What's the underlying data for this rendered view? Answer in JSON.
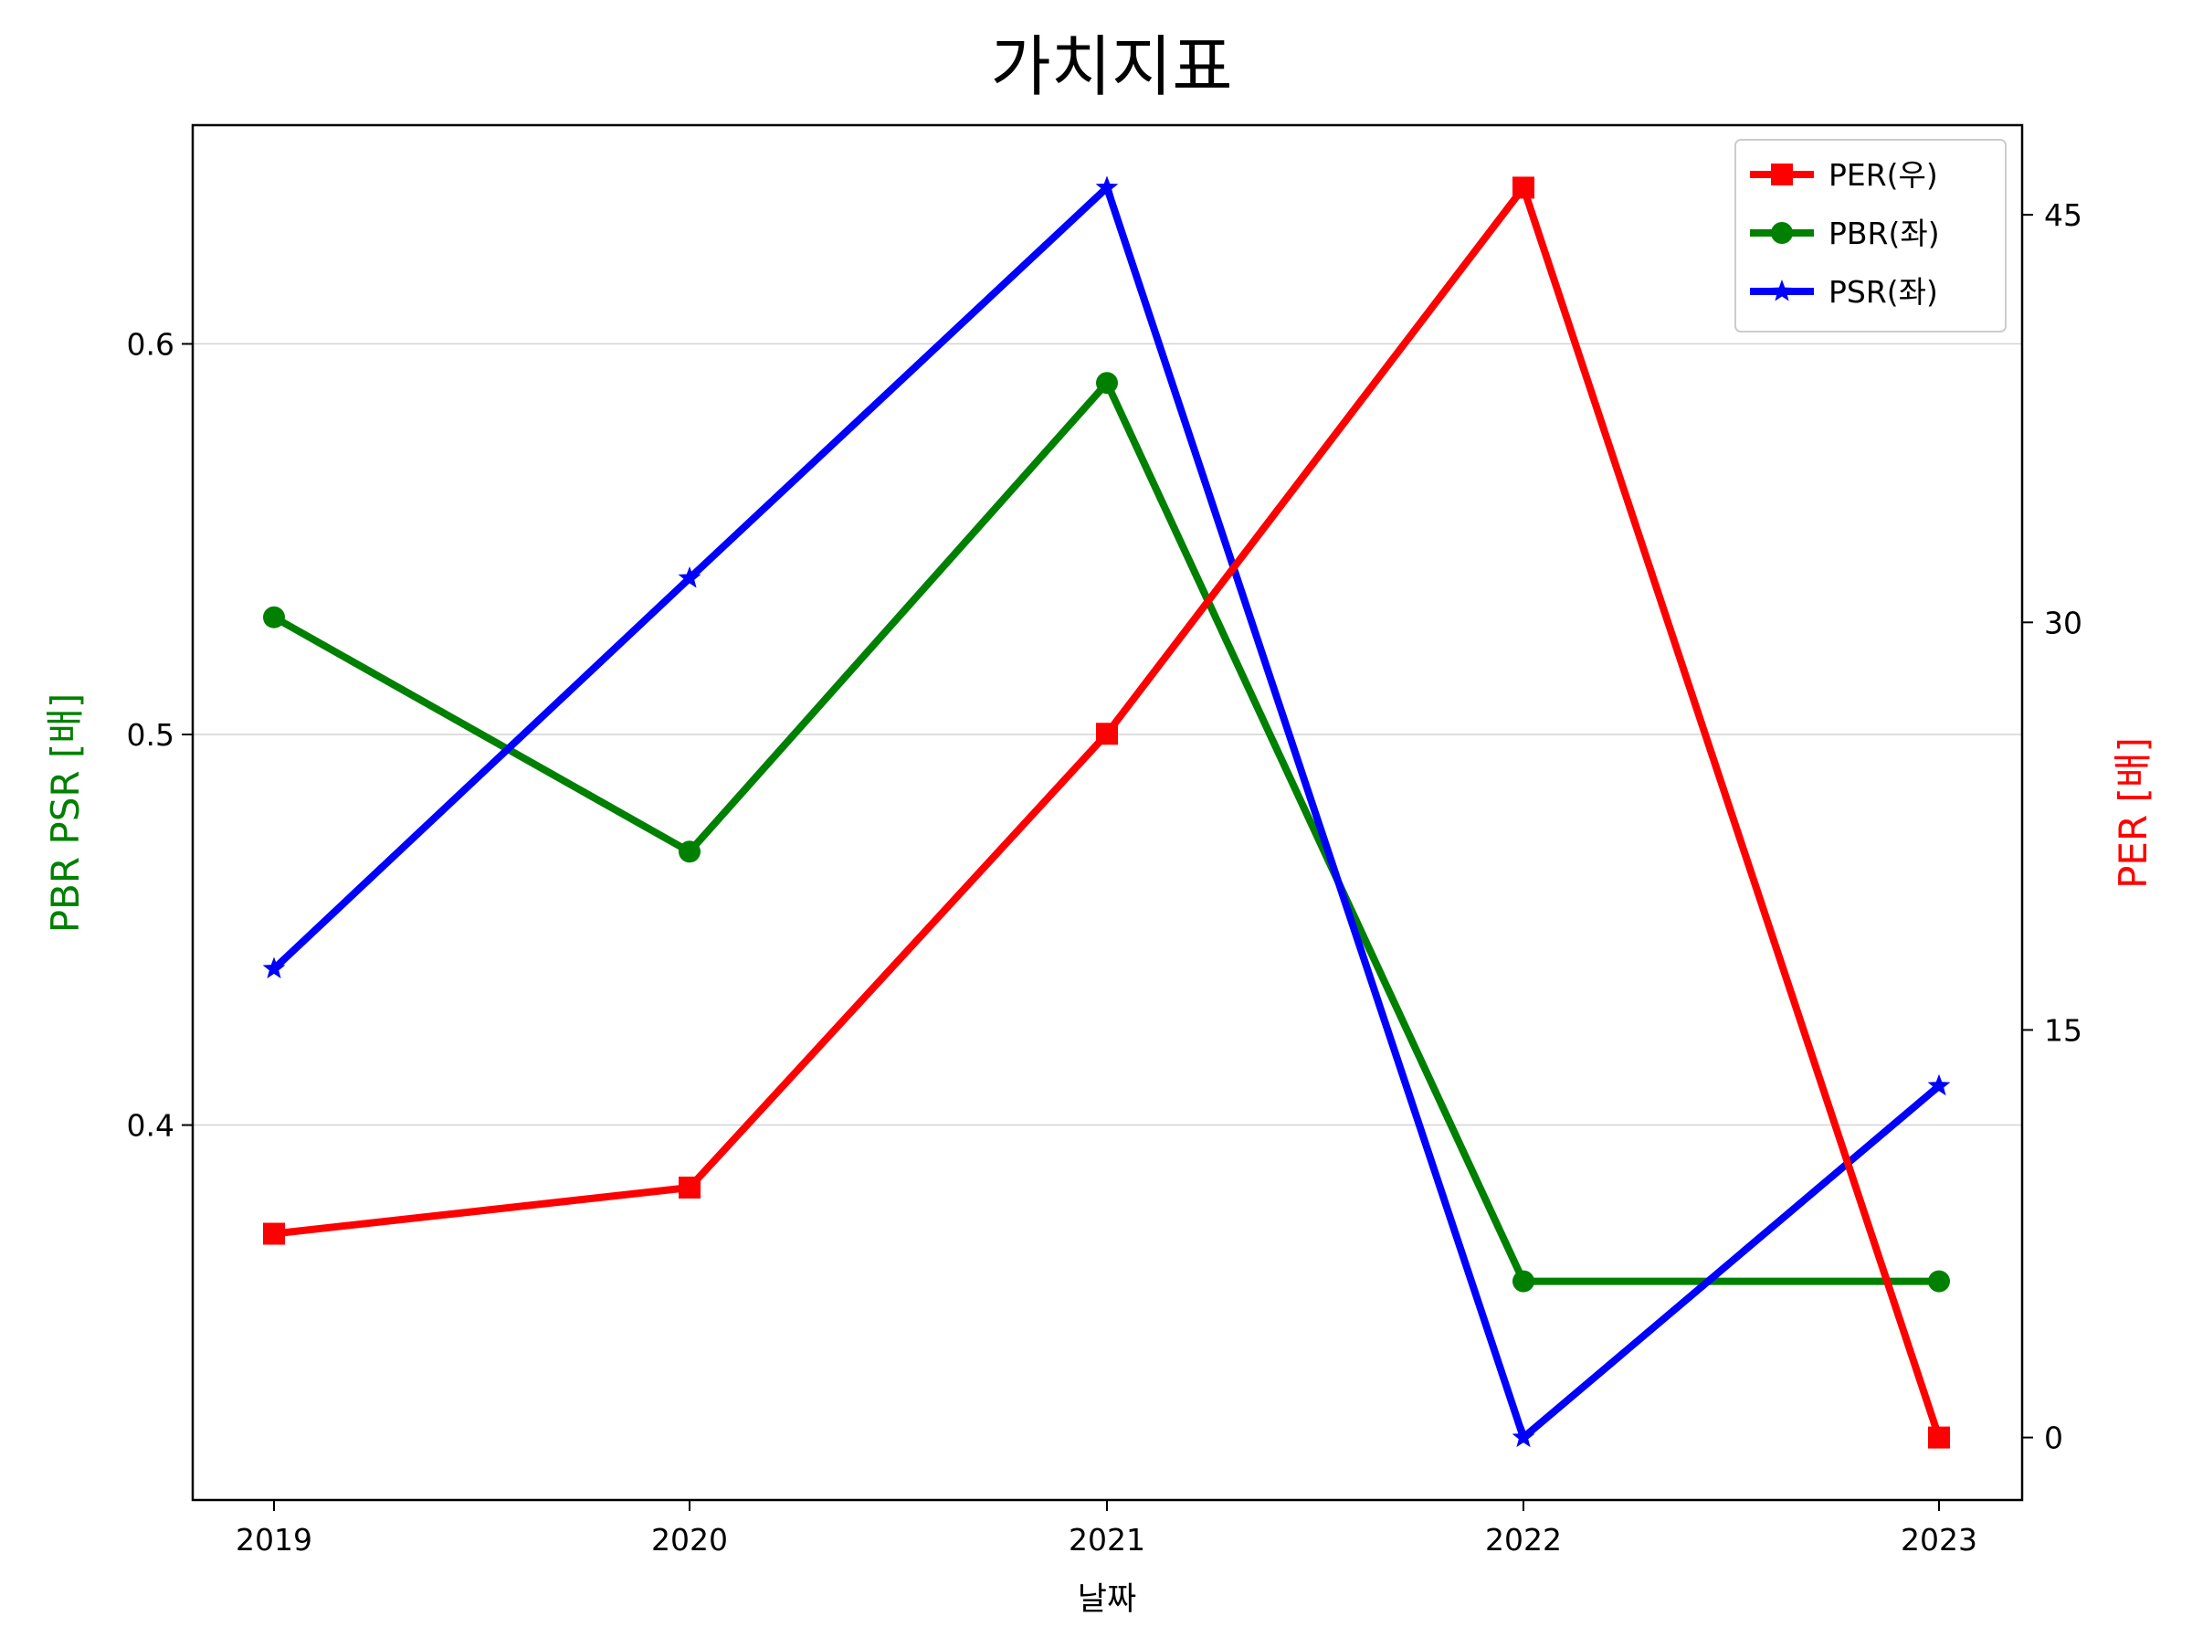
{
  "chart_data": {
    "type": "line",
    "title": "가치지표",
    "xlabel": "날짜",
    "ylabel_left": "PBR PSR [배]",
    "ylabel_right": "PER [배]",
    "categories": [
      "2019",
      "2020",
      "2021",
      "2022",
      "2023"
    ],
    "left_axis": {
      "ylim": [
        0.304,
        0.656
      ],
      "ticks": [
        0.4,
        0.5,
        0.6
      ],
      "tick_labels": [
        "0.4",
        "0.5",
        "0.6"
      ],
      "grid": true,
      "label_color": "#008000"
    },
    "right_axis": {
      "ylim": [
        -2.3,
        48.3
      ],
      "ticks": [
        0,
        15,
        30,
        45
      ],
      "tick_labels": [
        "0",
        "15",
        "30",
        "45"
      ],
      "label_color": "#ff0000"
    },
    "series": [
      {
        "name": "PER(우)",
        "axis": "right",
        "color": "#ff0000",
        "marker": "square",
        "values": [
          7.5,
          9.2,
          25.9,
          46.0,
          0.0
        ]
      },
      {
        "name": "PBR(좌)",
        "axis": "left",
        "color": "#008000",
        "marker": "circle",
        "values": [
          0.53,
          0.47,
          0.59,
          0.36,
          0.36
        ]
      },
      {
        "name": "PSR(좌)",
        "axis": "left",
        "color": "#0000ff",
        "marker": "star",
        "values": [
          0.44,
          0.54,
          0.64,
          0.32,
          0.41
        ]
      }
    ],
    "legend": {
      "position": "top-right"
    }
  }
}
